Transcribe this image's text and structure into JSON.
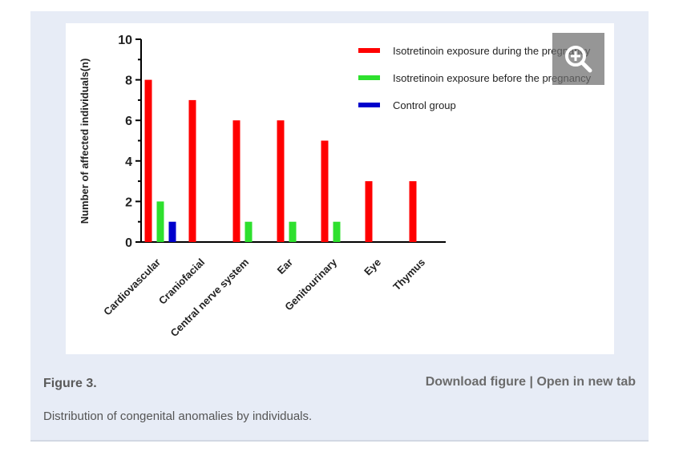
{
  "colors": {
    "during": "#ff0000",
    "before": "#2ee02e",
    "control": "#0000cc",
    "panel_bg": "#e7ecf6"
  },
  "figure": {
    "label": "Figure 3.",
    "download": "Download figure",
    "separator": "|",
    "open_tab": "Open in new tab",
    "caption": "Distribution of congenital anomalies by individuals."
  },
  "zoom": {
    "icon": "zoom-in-icon"
  },
  "chart_data": {
    "type": "bar",
    "title": "",
    "xlabel": "",
    "ylabel": "Number of affected individuals(n)",
    "ylim": [
      0,
      10
    ],
    "yticks": [
      "0",
      "2",
      "4",
      "6",
      "8",
      "10"
    ],
    "categories": [
      "Cardiovascular",
      "Craniofacial",
      "Central nerve system",
      "Ear",
      "Genitourinary",
      "Eye",
      "Thymus"
    ],
    "series": [
      {
        "name": "Isotretinoin exposure during the pregnancy",
        "color": "#ff0000",
        "values": [
          8,
          7,
          6,
          6,
          5,
          3,
          3
        ]
      },
      {
        "name": "Isotretinoin exposure before the pregnancy",
        "color": "#2ee02e",
        "values": [
          2,
          0,
          1,
          1,
          1,
          0,
          0
        ]
      },
      {
        "name": "Control group",
        "color": "#0000cc",
        "values": [
          1,
          0,
          0,
          0,
          0,
          0,
          0
        ]
      }
    ],
    "legend_position": "top-right"
  }
}
